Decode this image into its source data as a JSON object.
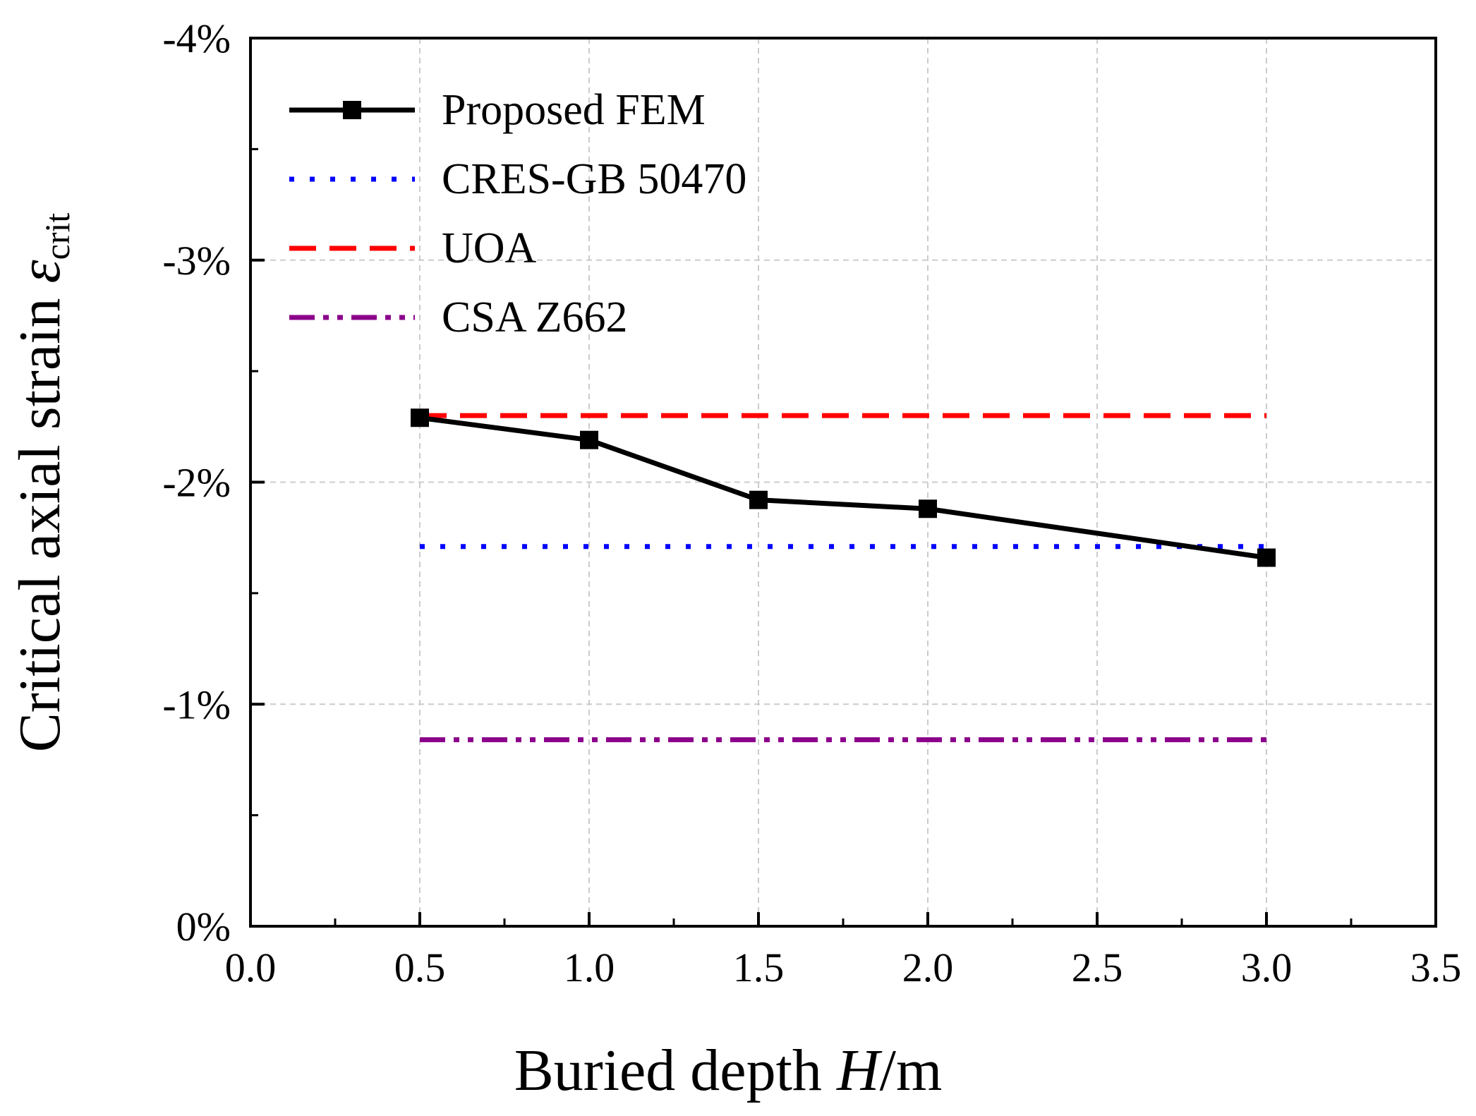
{
  "chart_data": {
    "type": "line",
    "xlabel": "Buried depth H/m",
    "xlabel_parts": [
      "Buried depth ",
      "H",
      "/m"
    ],
    "ylabel": "Critical axial strain εcrit",
    "ylabel_parts": [
      "Critical axial strain ",
      "ε",
      "crit"
    ],
    "xlim": [
      0.0,
      3.5
    ],
    "ylim": [
      0,
      -4
    ],
    "y_inverted": true,
    "grid": true,
    "legend_position": "top-left",
    "x_ticks": [
      0.0,
      0.5,
      1.0,
      1.5,
      2.0,
      2.5,
      3.0,
      3.5
    ],
    "x_tick_labels": [
      "0.0",
      "0.5",
      "1.0",
      "1.5",
      "2.0",
      "2.5",
      "3.0",
      "3.5"
    ],
    "x_minor_ticks": [
      0.25,
      0.75,
      1.25,
      1.75,
      2.25,
      2.75,
      3.25
    ],
    "y_ticks": [
      0,
      -1,
      -2,
      -3,
      -4
    ],
    "y_tick_labels": [
      "0%",
      "-1%",
      "-2%",
      "-3%",
      "-4%"
    ],
    "y_minor_ticks": [
      -0.5,
      -1.5,
      -2.5,
      -3.5
    ],
    "series": [
      {
        "name": "Proposed FEM",
        "style": "solid-square",
        "color": "#000000",
        "x": [
          0.5,
          1.0,
          1.5,
          2.0,
          3.0
        ],
        "y": [
          -2.29,
          -2.19,
          -1.92,
          -1.88,
          -1.66
        ]
      },
      {
        "name": "CRES-GB 50470",
        "style": "dotted",
        "color": "#0000ff",
        "x": [
          0.5,
          3.0
        ],
        "y": [
          -1.71,
          -1.71
        ]
      },
      {
        "name": "UOA",
        "style": "dashed",
        "color": "#ff0000",
        "x": [
          0.5,
          3.0
        ],
        "y": [
          -2.3,
          -2.3
        ]
      },
      {
        "name": "CSA Z662",
        "style": "dash-dot-dot",
        "color": "#8b008b",
        "x": [
          0.5,
          3.0
        ],
        "y": [
          -0.84,
          -0.84
        ]
      }
    ]
  }
}
